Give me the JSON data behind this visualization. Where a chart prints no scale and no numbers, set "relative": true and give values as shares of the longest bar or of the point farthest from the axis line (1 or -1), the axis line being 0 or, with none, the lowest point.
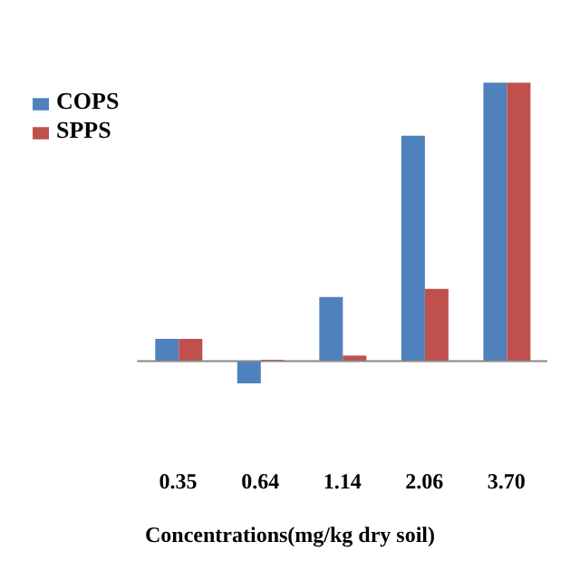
{
  "chart_data": {
    "type": "bar",
    "relative": true,
    "xlabel": "Concentrations(mg/kg dry soil)",
    "categories": [
      "0.35",
      "0.64",
      "1.14",
      "2.06",
      "3.70"
    ],
    "legend": "top left",
    "series": [
      {
        "name": "COPS",
        "color": "#4f81bd",
        "values": [
          0.08,
          -0.08,
          0.23,
          0.81,
          1
        ]
      },
      {
        "name": "SPPS",
        "color": "#c0504d",
        "values": [
          0.08,
          0.005,
          0.02,
          0.26,
          1
        ]
      }
    ]
  }
}
